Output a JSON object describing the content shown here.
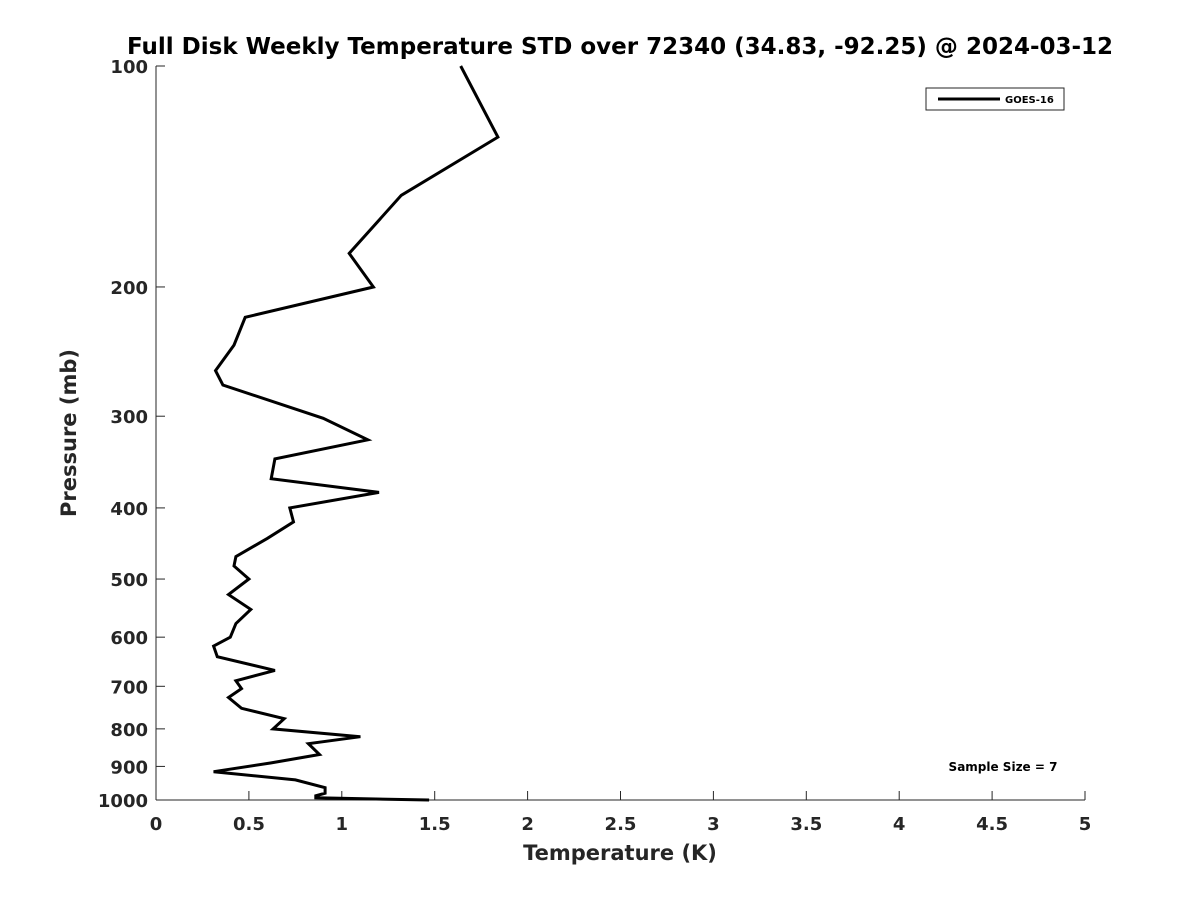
{
  "chart_data": {
    "type": "line",
    "title": "Full Disk Weekly Temperature STD over 72340 (34.83, -92.25) @ 2024-03-12",
    "xlabel": "Temperature (K)",
    "ylabel": "Pressure (mb)",
    "xlim": [
      0,
      5
    ],
    "ylim": [
      100,
      1000
    ],
    "y_scale": "log",
    "y_reversed": true,
    "x_ticks": [
      "0",
      "0.5",
      "1",
      "1.5",
      "2",
      "2.5",
      "3",
      "3.5",
      "4",
      "4.5",
      "5"
    ],
    "y_ticks": [
      "100",
      "200",
      "300",
      "400",
      "500",
      "600",
      "700",
      "800",
      "900",
      "1000"
    ],
    "grid": false,
    "legend_position": "top-right",
    "annotation": "Sample Size = 7",
    "series": [
      {
        "name": "GOES-16",
        "color": "#000000",
        "points": [
          [
            1.64,
            100
          ],
          [
            1.84,
            125
          ],
          [
            1.32,
            150
          ],
          [
            1.04,
            180
          ],
          [
            1.17,
            200
          ],
          [
            0.48,
            220
          ],
          [
            0.42,
            240
          ],
          [
            0.32,
            260
          ],
          [
            0.36,
            272
          ],
          [
            0.9,
            302
          ],
          [
            1.14,
            323
          ],
          [
            0.64,
            343
          ],
          [
            0.62,
            365
          ],
          [
            1.2,
            381
          ],
          [
            0.72,
            400
          ],
          [
            0.74,
            418
          ],
          [
            0.6,
            440
          ],
          [
            0.43,
            466
          ],
          [
            0.42,
            480
          ],
          [
            0.5,
            500
          ],
          [
            0.39,
            525
          ],
          [
            0.51,
            550
          ],
          [
            0.43,
            575
          ],
          [
            0.4,
            600
          ],
          [
            0.31,
            617
          ],
          [
            0.33,
            638
          ],
          [
            0.64,
            666
          ],
          [
            0.43,
            688
          ],
          [
            0.46,
            705
          ],
          [
            0.39,
            725
          ],
          [
            0.46,
            750
          ],
          [
            0.69,
            775
          ],
          [
            0.63,
            800
          ],
          [
            1.1,
            820
          ],
          [
            0.82,
            838
          ],
          [
            0.88,
            867
          ],
          [
            0.62,
            890
          ],
          [
            0.31,
            915
          ],
          [
            0.75,
            939
          ],
          [
            0.91,
            962
          ],
          [
            0.91,
            979
          ],
          [
            0.86,
            987
          ],
          [
            0.86,
            993
          ],
          [
            1.47,
            1000
          ]
        ]
      }
    ]
  }
}
